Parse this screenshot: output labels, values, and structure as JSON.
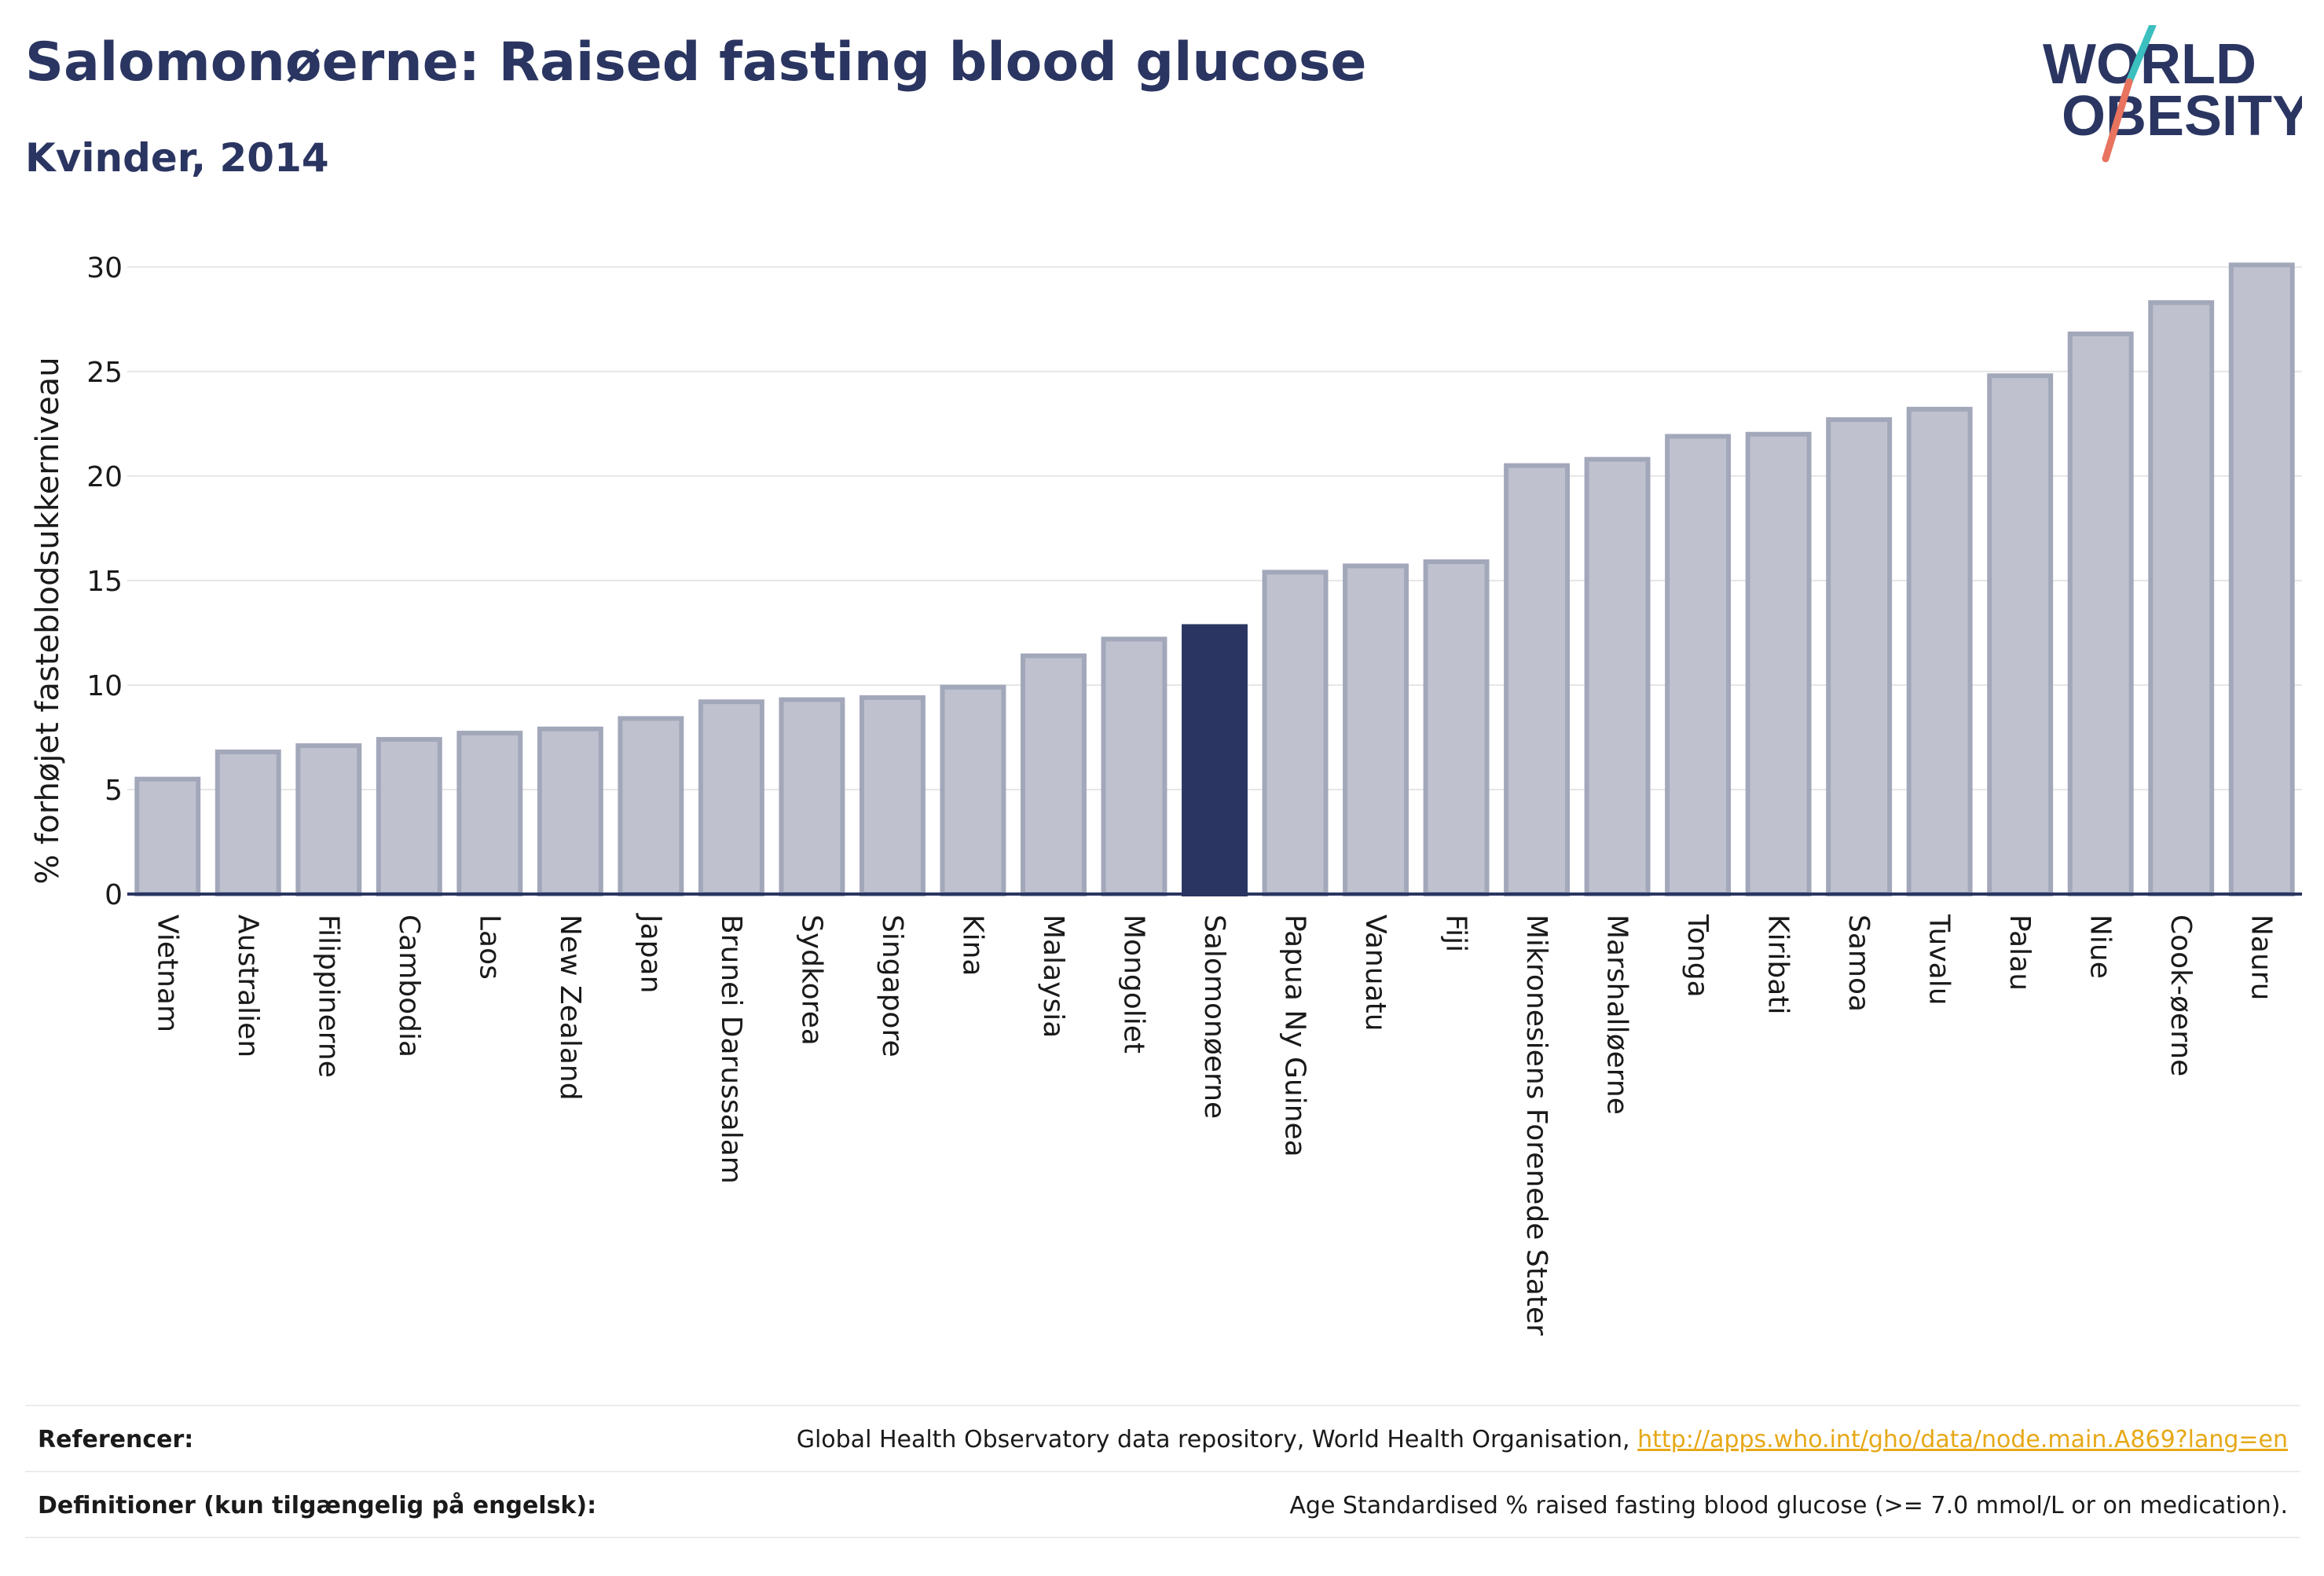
{
  "header": {
    "title": "Salomonøerne: Raised fasting blood glucose",
    "subtitle": "Kvinder, 2014"
  },
  "logo": {
    "line1": "WORLD",
    "line2": "OBESITY",
    "colors": {
      "text": "#2a3561",
      "slash_top": "#3bbfbf",
      "slash_bottom": "#e8735f"
    }
  },
  "chart_data": {
    "type": "bar",
    "ylabel": "% forhøjet fasteblodsukkerniveau",
    "xlabel": "",
    "ylim": [
      0,
      31.5
    ],
    "yticks": [
      0,
      5,
      10,
      15,
      20,
      25,
      30
    ],
    "grid": true,
    "highlight": "Salomonøerne",
    "colors": {
      "bar": "#bfc2ce",
      "bar_edge": "#a2a7ba",
      "highlight": "#2a3561",
      "grid": "#e6e6e6",
      "axis": "#2a3561"
    },
    "categories": [
      "Vietnam",
      "Australien",
      "Filippinerne",
      "Cambodia",
      "Laos",
      "New Zealand",
      "Japan",
      "Brunei Darussalam",
      "Sydkorea",
      "Singapore",
      "Kina",
      "Malaysia",
      "Mongoliet",
      "Salomonøerne",
      "Papua Ny Guinea",
      "Vanuatu",
      "Fiji",
      "Mikronesiens Forenede Stater",
      "Marshalløerne",
      "Tonga",
      "Kiribati",
      "Samoa",
      "Tuvalu",
      "Palau",
      "Niue",
      "Cook-øerne",
      "Nauru"
    ],
    "values": [
      5.5,
      6.8,
      7.1,
      7.4,
      7.7,
      7.9,
      8.4,
      9.2,
      9.3,
      9.4,
      9.9,
      11.4,
      12.2,
      12.8,
      15.4,
      15.7,
      15.9,
      20.5,
      20.8,
      21.9,
      22.0,
      22.7,
      23.2,
      24.8,
      26.8,
      28.3,
      30.1
    ]
  },
  "footer": {
    "references_label": "Referencer:",
    "references_text": "Global Health Observatory data repository, World Health Organisation,",
    "references_link": "http://apps.who.int/gho/data/node.main.A869?lang=en",
    "definitions_label": "Definitioner (kun tilgængelig på engelsk):",
    "definitions_text": "Age Standardised % raised fasting blood glucose (>= 7.0 mmol/L or on medication)."
  }
}
